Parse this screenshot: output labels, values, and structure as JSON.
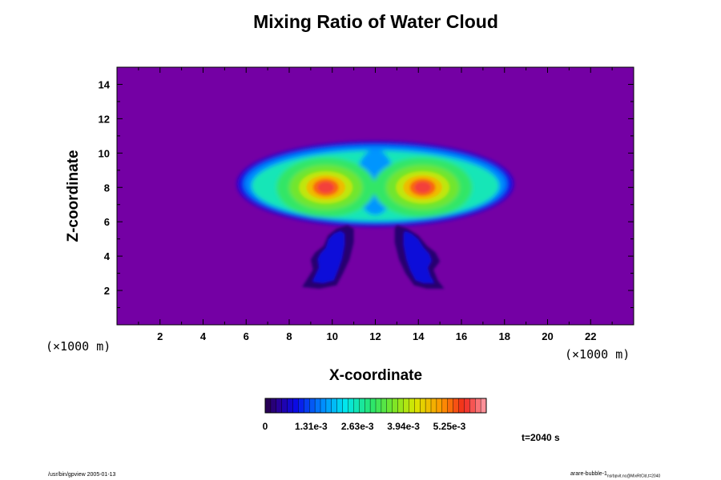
{
  "chart_data": {
    "type": "heatmap",
    "title": "Mixing Ratio of Water Cloud",
    "xlabel": "X-coordinate",
    "ylabel": "Z-coordinate",
    "x_unit": "(×1000 m)",
    "y_unit": "(×1000 m)",
    "xlim": [
      0,
      24
    ],
    "ylim": [
      0,
      15
    ],
    "x_ticks": [
      2,
      4,
      6,
      8,
      10,
      12,
      14,
      16,
      18,
      20,
      22
    ],
    "y_ticks": [
      2,
      4,
      6,
      8,
      10,
      12,
      14
    ],
    "colorbar": {
      "min": 0,
      "max": 0.0063,
      "tick_values": [
        0,
        0.00131,
        0.00263,
        0.00394,
        0.00525
      ],
      "tick_labels": [
        "0",
        "1.31e-3",
        "2.63e-3",
        "3.94e-3",
        "5.25e-3"
      ],
      "levels": 40
    },
    "features": [
      {
        "shape": "cloud-cap",
        "x_range": [
          5.5,
          18.5
        ],
        "z_range": [
          5.8,
          10.7
        ],
        "value_range": [
          0.0004,
          0.0035
        ]
      },
      {
        "shape": "core",
        "x": 9.7,
        "z": 8.0,
        "value": 0.0058
      },
      {
        "shape": "core",
        "x": 14.2,
        "z": 8.0,
        "value": 0.0058
      },
      {
        "shape": "stem",
        "x_range": [
          9.0,
          10.7
        ],
        "z_range": [
          2.0,
          5.8
        ],
        "value_range": [
          0.0002,
          0.0008
        ]
      },
      {
        "shape": "stem",
        "x_range": [
          13.0,
          15.0
        ],
        "z_range": [
          2.0,
          5.8
        ],
        "value_range": [
          0.0002,
          0.0008
        ]
      }
    ],
    "background_color": "#7400a4",
    "time_label": "t=2040 s"
  },
  "footer": {
    "left": "/usr/bin/gpview 2005-01-13",
    "right_main": "arare-bubble-1",
    "right_sub": "nsrbpvit.nc@MixRtCld,t=2040"
  }
}
